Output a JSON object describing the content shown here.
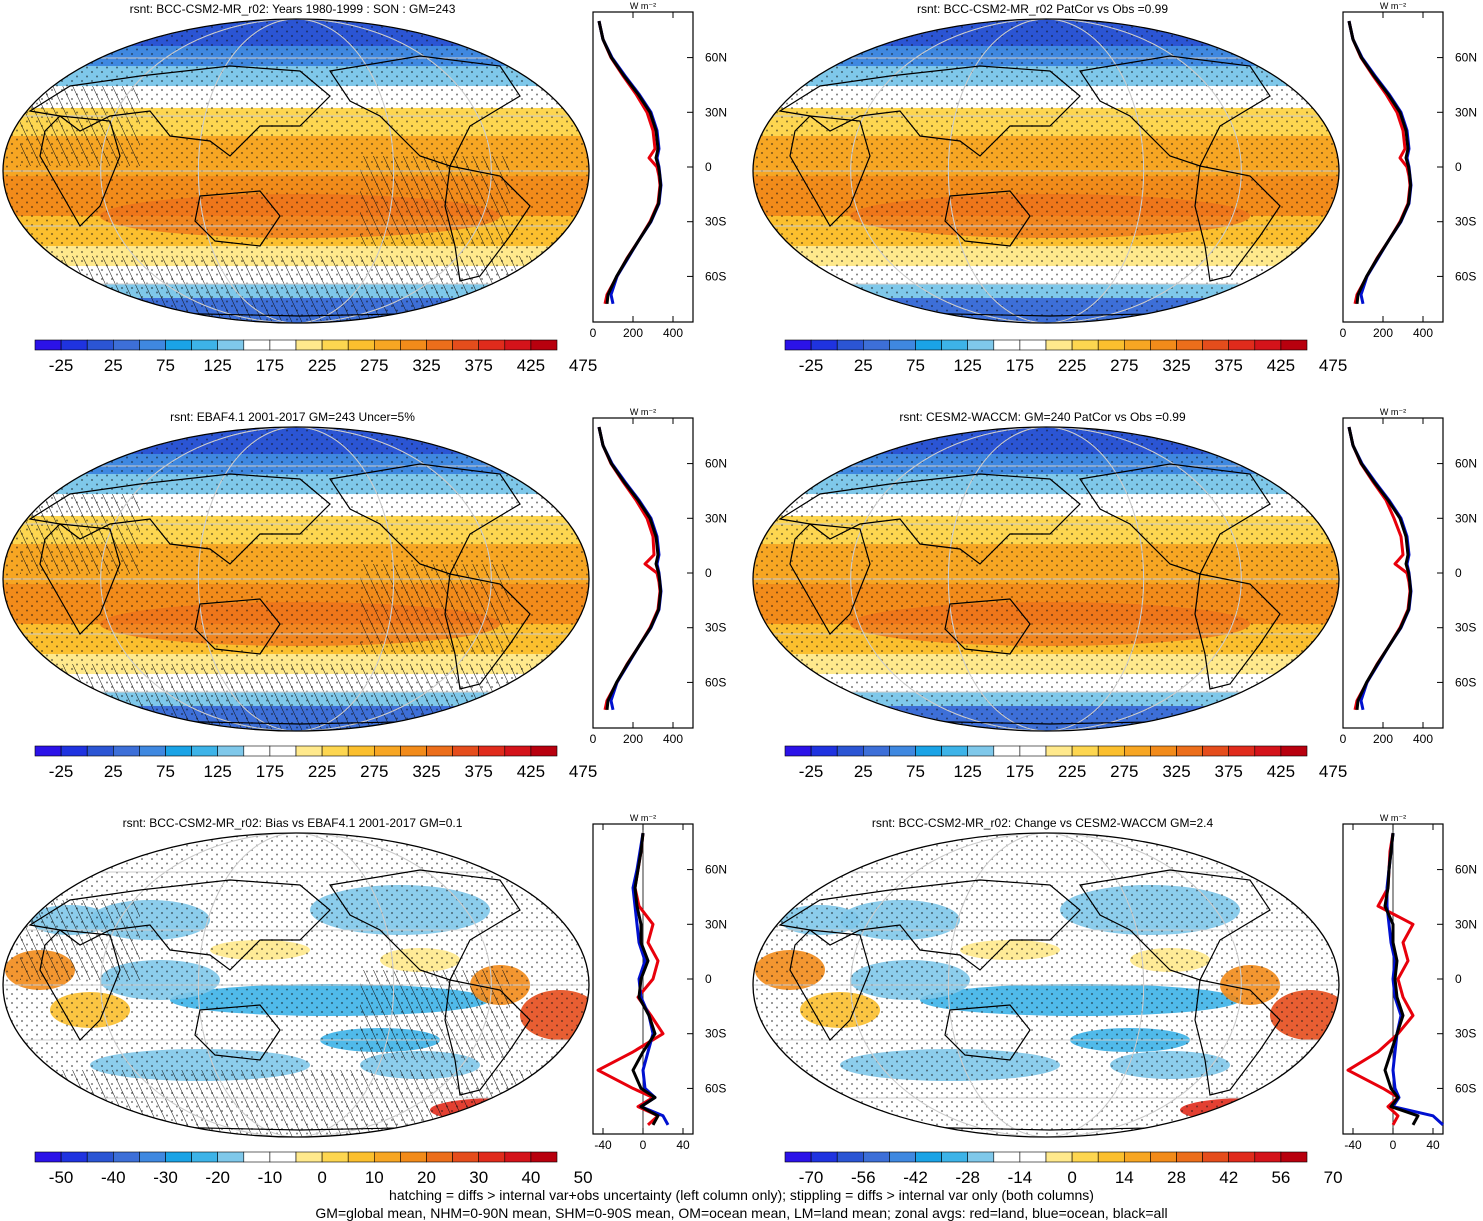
{
  "footnotes": {
    "line1": "hatching = diffs > internal var+obs uncertainty (left column only); stippling = diffs > internal var only (both columns)",
    "line2": "GM=global mean, NHM=0-90N mean, SHM=0-90S mean, OM=ocean mean, LM=land mean; zonal avgs: red=land, blue=ocean, black=all"
  },
  "colors": {
    "land": "#e8000b",
    "ocean": "#0010d0",
    "all": "#000000",
    "absolute_scale": [
      "#2b12e8",
      "#1f33e0",
      "#2b55d4",
      "#3d6fd8",
      "#3f88e0",
      "#1aa3e6",
      "#3db3e8",
      "#7fc8ea",
      "#ffffff",
      "#ffffff",
      "#ffe98c",
      "#fdd650",
      "#fbbf2e",
      "#f7a623",
      "#f28b1a",
      "#ec6e1b",
      "#e54d1c",
      "#e02b1c",
      "#d4131a",
      "#b8000e"
    ],
    "diff_scale": [
      "#2b12e8",
      "#1f33e0",
      "#2b55d4",
      "#3d6fd8",
      "#3f88e0",
      "#1aa3e6",
      "#3db3e8",
      "#7fc8ea",
      "#ffffff",
      "#ffffff",
      "#ffe98c",
      "#fdd650",
      "#fbbf2e",
      "#f7a623",
      "#f28b1a",
      "#ec6e1b",
      "#e54d1c",
      "#e02b1c",
      "#d4131a",
      "#b8000e"
    ]
  },
  "chart_data": [
    {
      "type": "heatmap",
      "title": "rsnt: BCC-CSM2-MR_r02: Years 1980-1999 : SON : GM=243",
      "colorbar_labels": [
        "-25",
        "25",
        "75",
        "125",
        "175",
        "225",
        "275",
        "325",
        "375",
        "425",
        "475"
      ],
      "scale": "absolute",
      "stipple": true,
      "hatch": true
    },
    {
      "type": "heatmap",
      "title": "rsnt: BCC-CSM2-MR_r02 PatCor vs Obs =0.99",
      "colorbar_labels": [
        "-25",
        "25",
        "75",
        "125",
        "175",
        "225",
        "275",
        "325",
        "375",
        "425",
        "475"
      ],
      "scale": "absolute",
      "stipple": true,
      "hatch": false
    },
    {
      "type": "heatmap",
      "title": "rsnt: EBAF4.1 2001-2017 GM=243 Uncer=5%",
      "colorbar_labels": [
        "-25",
        "25",
        "75",
        "125",
        "175",
        "225",
        "275",
        "325",
        "375",
        "425",
        "475"
      ],
      "scale": "absolute",
      "stipple": true,
      "hatch": true
    },
    {
      "type": "heatmap",
      "title": "rsnt: CESM2-WACCM: GM=240 PatCor vs Obs =0.99",
      "colorbar_labels": [
        "-25",
        "25",
        "75",
        "125",
        "175",
        "225",
        "275",
        "325",
        "375",
        "425",
        "475"
      ],
      "scale": "absolute",
      "stipple": true,
      "hatch": false
    },
    {
      "type": "heatmap",
      "title": "rsnt: BCC-CSM2-MR_r02: Bias vs EBAF4.1 2001-2017  GM=0.1",
      "colorbar_labels": [
        "-50",
        "-40",
        "-30",
        "-20",
        "-10",
        "0",
        "10",
        "20",
        "30",
        "40",
        "50"
      ],
      "scale": "diff",
      "stipple": true,
      "hatch": true
    },
    {
      "type": "heatmap",
      "title": "rsnt: BCC-CSM2-MR_r02: Change vs CESM2-WACCM GM=2.4",
      "colorbar_labels": [
        "-70",
        "-56",
        "-42",
        "-28",
        "-14",
        "0",
        "14",
        "28",
        "42",
        "56",
        "70"
      ],
      "scale": "diff",
      "stipple": true,
      "hatch": false
    }
  ],
  "zonal_profiles": [
    {
      "unit": "W m⁻²",
      "xticks": [
        "0",
        "200",
        "400"
      ],
      "xlim": [
        0,
        500
      ],
      "yticks": [
        "60N",
        "30N",
        "0",
        "30S",
        "60S"
      ],
      "ylim": [
        -85,
        85
      ],
      "lat": [
        80,
        70,
        60,
        50,
        40,
        30,
        20,
        10,
        5,
        0,
        -5,
        -10,
        -20,
        -30,
        -40,
        -50,
        -60,
        -70,
        -75
      ],
      "land": [
        30,
        50,
        90,
        150,
        215,
        270,
        300,
        310,
        280,
        320,
        330,
        335,
        325,
        285,
        230,
        170,
        120,
        70,
        60
      ],
      "ocean": [
        30,
        50,
        95,
        160,
        230,
        290,
        320,
        330,
        320,
        330,
        335,
        340,
        330,
        290,
        230,
        175,
        120,
        90,
        100
      ],
      "all": [
        30,
        50,
        92,
        155,
        225,
        285,
        315,
        325,
        315,
        328,
        334,
        338,
        328,
        288,
        230,
        172,
        118,
        75,
        70
      ]
    },
    {
      "unit": "W m⁻²",
      "xticks": [
        "0",
        "200",
        "400"
      ],
      "xlim": [
        0,
        500
      ],
      "yticks": [
        "60N",
        "30N",
        "0",
        "30S",
        "60S"
      ],
      "ylim": [
        -85,
        85
      ],
      "lat": [
        80,
        70,
        60,
        50,
        40,
        30,
        20,
        10,
        5,
        0,
        -5,
        -10,
        -20,
        -30,
        -40,
        -50,
        -60,
        -70,
        -75
      ],
      "land": [
        30,
        50,
        90,
        150,
        215,
        270,
        300,
        310,
        285,
        320,
        330,
        335,
        325,
        285,
        230,
        170,
        120,
        70,
        60
      ],
      "ocean": [
        30,
        50,
        95,
        160,
        230,
        290,
        320,
        330,
        320,
        330,
        335,
        340,
        330,
        290,
        230,
        175,
        120,
        90,
        100
      ],
      "all": [
        30,
        50,
        92,
        155,
        225,
        285,
        315,
        325,
        315,
        328,
        334,
        338,
        328,
        288,
        230,
        172,
        118,
        75,
        70
      ]
    },
    {
      "unit": "W m⁻²",
      "xticks": [
        "0",
        "200",
        "400"
      ],
      "xlim": [
        0,
        500
      ],
      "yticks": [
        "60N",
        "30N",
        "0",
        "30S",
        "60S"
      ],
      "ylim": [
        -85,
        85
      ],
      "lat": [
        80,
        70,
        60,
        50,
        40,
        30,
        20,
        10,
        5,
        0,
        -5,
        -10,
        -20,
        -30,
        -40,
        -50,
        -60,
        -70,
        -75
      ],
      "land": [
        30,
        50,
        90,
        150,
        215,
        270,
        300,
        305,
        260,
        320,
        330,
        335,
        325,
        285,
        230,
        170,
        120,
        70,
        60
      ],
      "ocean": [
        30,
        50,
        95,
        160,
        230,
        290,
        320,
        330,
        320,
        330,
        335,
        340,
        330,
        290,
        230,
        175,
        120,
        90,
        100
      ],
      "all": [
        30,
        50,
        92,
        155,
        225,
        285,
        315,
        325,
        315,
        328,
        334,
        338,
        328,
        288,
        230,
        172,
        118,
        75,
        70
      ]
    },
    {
      "unit": "W m⁻²",
      "xticks": [
        "0",
        "200",
        "400"
      ],
      "xlim": [
        0,
        500
      ],
      "yticks": [
        "60N",
        "30N",
        "0",
        "30S",
        "60S"
      ],
      "ylim": [
        -85,
        85
      ],
      "lat": [
        80,
        70,
        60,
        50,
        40,
        30,
        20,
        10,
        5,
        0,
        -5,
        -10,
        -20,
        -30,
        -40,
        -50,
        -60,
        -70,
        -75
      ],
      "land": [
        30,
        50,
        90,
        150,
        215,
        255,
        290,
        300,
        260,
        320,
        330,
        335,
        325,
        285,
        230,
        170,
        120,
        70,
        60
      ],
      "ocean": [
        30,
        50,
        95,
        160,
        230,
        290,
        320,
        330,
        320,
        330,
        335,
        340,
        330,
        290,
        230,
        175,
        120,
        90,
        100
      ],
      "all": [
        30,
        50,
        92,
        155,
        225,
        285,
        315,
        325,
        315,
        328,
        334,
        338,
        328,
        288,
        230,
        172,
        118,
        75,
        70
      ]
    },
    {
      "unit": "W m⁻²",
      "xticks": [
        "-40",
        "0",
        "40"
      ],
      "xlim": [
        -50,
        50
      ],
      "yticks": [
        "60N",
        "30N",
        "0",
        "30S",
        "60S"
      ],
      "ylim": [
        -85,
        85
      ],
      "lat": [
        80,
        70,
        60,
        50,
        40,
        30,
        20,
        10,
        0,
        -10,
        -20,
        -30,
        -40,
        -50,
        -60,
        -65,
        -70,
        -75,
        -80
      ],
      "land": [
        0,
        -2,
        -5,
        -8,
        -4,
        10,
        5,
        15,
        10,
        -5,
        8,
        20,
        -10,
        -45,
        -10,
        10,
        -5,
        15,
        5
      ],
      "ocean": [
        0,
        -3,
        -6,
        -10,
        -8,
        -6,
        -4,
        2,
        -4,
        -2,
        6,
        10,
        5,
        0,
        2,
        12,
        -2,
        20,
        25
      ],
      "all": [
        0,
        -2,
        -5,
        -8,
        -6,
        -2,
        -2,
        5,
        -2,
        -4,
        6,
        12,
        0,
        -10,
        -2,
        12,
        -2,
        15,
        10
      ]
    },
    {
      "unit": "W m⁻²",
      "xticks": [
        "-40",
        "0",
        "40"
      ],
      "xlim": [
        -50,
        50
      ],
      "yticks": [
        "60N",
        "30N",
        "0",
        "30S",
        "60S"
      ],
      "ylim": [
        -85,
        85
      ],
      "lat": [
        80,
        70,
        60,
        50,
        40,
        30,
        20,
        10,
        0,
        -10,
        -20,
        -30,
        -40,
        -50,
        -60,
        -65,
        -70,
        -75,
        -80
      ],
      "land": [
        0,
        -3,
        -4,
        -5,
        -15,
        20,
        10,
        15,
        5,
        10,
        20,
        5,
        -15,
        -45,
        -10,
        5,
        -5,
        5,
        0
      ],
      "ocean": [
        0,
        -2,
        -4,
        -6,
        -6,
        -4,
        -2,
        2,
        0,
        2,
        8,
        4,
        2,
        0,
        2,
        6,
        0,
        40,
        50
      ],
      "all": [
        0,
        -2,
        -4,
        -5,
        -8,
        0,
        0,
        4,
        2,
        4,
        10,
        4,
        -2,
        -8,
        -2,
        5,
        -2,
        25,
        20
      ]
    }
  ]
}
